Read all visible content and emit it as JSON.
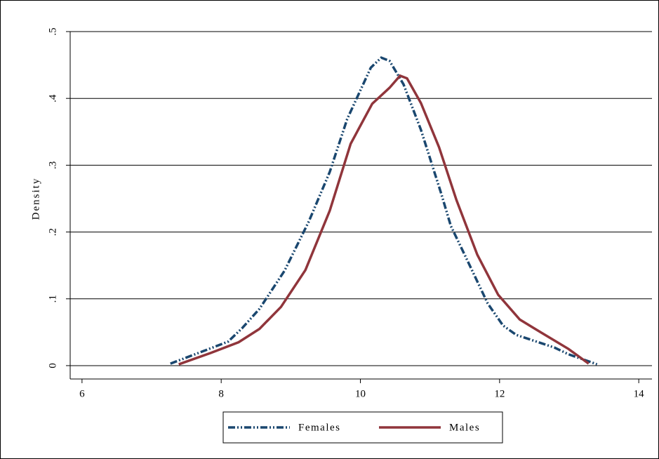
{
  "chart_data": {
    "type": "line",
    "y_label": "Density",
    "xlim": [
      5.83,
      14.19
    ],
    "xticks": [
      6,
      8,
      10,
      12,
      14
    ],
    "ylim": [
      -0.02,
      0.5
    ],
    "yticks": [
      0,
      {
        "value": 0.1,
        "label": ".1"
      },
      {
        "value": 0.2,
        "label": ".2"
      },
      {
        "value": 0.3,
        "label": ".3"
      },
      {
        "value": 0.4,
        "label": ".4"
      },
      {
        "value": 0.5,
        "label": ".5"
      }
    ],
    "grid": true,
    "legend": "bottom",
    "series": [
      {
        "name": "Females",
        "color": "#1a476f",
        "dash": "dash-dot",
        "x": [
          7.27,
          7.75,
          8.1,
          8.3,
          8.55,
          8.91,
          9.26,
          9.56,
          9.81,
          10.15,
          10.3,
          10.42,
          10.62,
          10.87,
          11.16,
          11.3,
          11.53,
          11.83,
          12.05,
          12.24,
          12.79,
          12.99,
          13.4
        ],
        "values": [
          0.003,
          0.022,
          0.036,
          0.056,
          0.085,
          0.142,
          0.216,
          0.29,
          0.369,
          0.446,
          0.461,
          0.456,
          0.421,
          0.353,
          0.258,
          0.209,
          0.159,
          0.093,
          0.06,
          0.046,
          0.027,
          0.017,
          0.002
        ]
      },
      {
        "name": "Males",
        "color": "#90353b",
        "dash": "solid",
        "x": [
          7.39,
          7.85,
          8.25,
          8.55,
          8.86,
          9.21,
          9.56,
          9.86,
          10.17,
          10.42,
          10.57,
          10.67,
          10.87,
          11.13,
          11.38,
          11.68,
          11.98,
          12.29,
          12.59,
          12.99,
          13.28
        ],
        "values": [
          0.002,
          0.019,
          0.035,
          0.055,
          0.088,
          0.143,
          0.232,
          0.332,
          0.392,
          0.416,
          0.434,
          0.43,
          0.393,
          0.327,
          0.248,
          0.166,
          0.106,
          0.069,
          0.05,
          0.025,
          0.003
        ]
      }
    ]
  }
}
